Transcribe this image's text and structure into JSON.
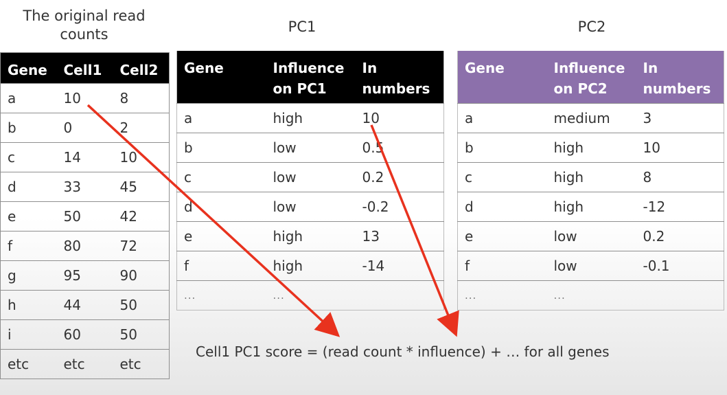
{
  "captions": {
    "original": "The original read counts",
    "pc1": "PC1",
    "pc2": "PC2"
  },
  "counts_table": {
    "headers": [
      "Gene",
      "Cell1",
      "Cell2"
    ],
    "rows": [
      [
        "a",
        "10",
        "8"
      ],
      [
        "b",
        "0",
        "2"
      ],
      [
        "c",
        "14",
        "10"
      ],
      [
        "d",
        "33",
        "45"
      ],
      [
        "e",
        "50",
        "42"
      ],
      [
        "f",
        "80",
        "72"
      ],
      [
        "g",
        "95",
        "90"
      ],
      [
        "h",
        "44",
        "50"
      ],
      [
        "i",
        "60",
        "50"
      ],
      [
        "etc",
        "etc",
        "etc"
      ]
    ]
  },
  "pc1_table": {
    "headers": [
      "Gene",
      "Influence on PC1",
      "In numbers"
    ],
    "rows": [
      [
        "a",
        "high",
        "10"
      ],
      [
        "b",
        "low",
        "0.5"
      ],
      [
        "c",
        "low",
        "0.2"
      ],
      [
        "d",
        "low",
        "-0.2"
      ],
      [
        "e",
        "high",
        "13"
      ],
      [
        "f",
        "high",
        "-14"
      ],
      [
        "...",
        "...",
        ""
      ]
    ]
  },
  "pc2_table": {
    "headers": [
      "Gene",
      "Influence on PC2",
      "In numbers"
    ],
    "rows": [
      [
        "a",
        "medium",
        "3"
      ],
      [
        "b",
        "high",
        "10"
      ],
      [
        "c",
        "high",
        "8"
      ],
      [
        "d",
        "high",
        "-12"
      ],
      [
        "e",
        "low",
        "0.2"
      ],
      [
        "f",
        "low",
        "-0.1"
      ],
      [
        "...",
        "...",
        ""
      ]
    ]
  },
  "formula": "Cell1 PC1 score = (read count * influence) + … for all genes",
  "colors": {
    "header_dark": "#000000",
    "header_purple": "#8c70ab",
    "arrow": "#e8321e"
  }
}
